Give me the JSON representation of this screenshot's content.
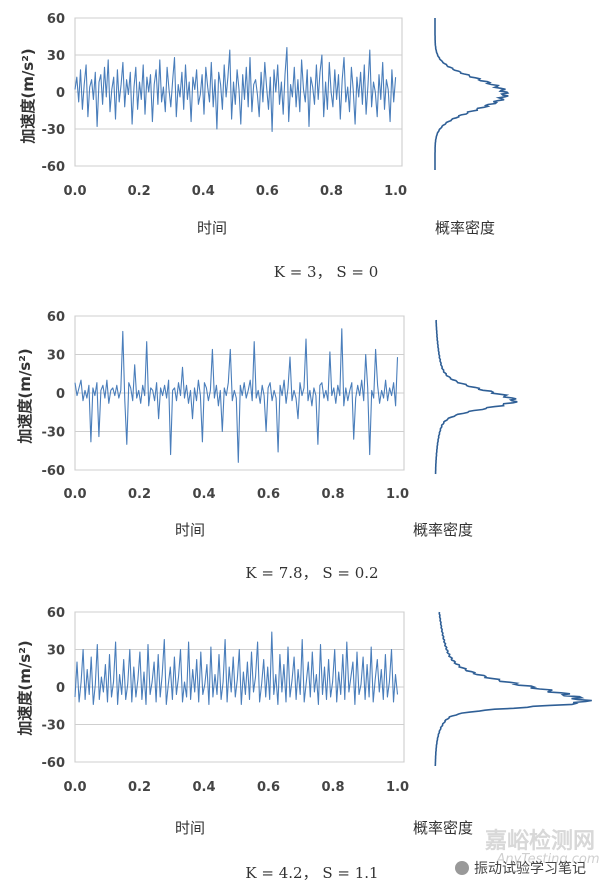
{
  "chart_data": [
    {
      "type": "line",
      "ylabel": "加速度(m/s²)",
      "xlabel": "时间",
      "pdf_label": "概率密度",
      "caption": "K = 3， S = 0",
      "xticks": [
        "0.0",
        "0.2",
        "0.4",
        "0.6",
        "0.8",
        "1.0"
      ],
      "yticks": [
        "60",
        "30",
        "0",
        "-30",
        "-60"
      ],
      "xlim": [
        0,
        1.02
      ],
      "ylim": [
        -60,
        60
      ],
      "grid": true,
      "kurtosis": 3,
      "skewness": 0,
      "series": [
        {
          "values": [
            2,
            12,
            -8,
            18,
            -14,
            6,
            22,
            -20,
            4,
            10,
            -6,
            16,
            -28,
            8,
            14,
            -10,
            20,
            -4,
            26,
            -16,
            2,
            12,
            -22,
            18,
            -8,
            6,
            24,
            -12,
            10,
            -2,
            16,
            -26,
            4,
            20,
            -14,
            8,
            -6,
            22,
            -18,
            12,
            0,
            14,
            -24,
            6,
            18,
            -10,
            26,
            -8,
            4,
            -16,
            20,
            2,
            -12,
            10,
            28,
            -20,
            6,
            -4,
            16,
            -14,
            22,
            -6,
            8,
            -24,
            12,
            2,
            18,
            -10,
            -2,
            14,
            -18,
            20,
            4,
            -8,
            24,
            -12,
            10,
            -30,
            16,
            6,
            -14,
            22,
            -4,
            12,
            34,
            -22,
            8,
            -10,
            18,
            2,
            -26,
            14,
            -6,
            20,
            -12,
            28,
            -16,
            6,
            10,
            -2,
            -20,
            16,
            -8,
            24,
            4,
            -14,
            12,
            -32,
            18,
            0,
            22,
            -10,
            8,
            -18,
            14,
            36,
            -24,
            6,
            -4,
            20,
            -12,
            10,
            -16,
            26,
            2,
            -8,
            18,
            -28,
            12,
            4,
            -10,
            22,
            -6,
            16,
            30,
            -20,
            8,
            -14,
            24,
            0,
            -12,
            18,
            -6,
            14,
            -22,
            10,
            28,
            -8,
            4,
            -16,
            20,
            2,
            -26,
            12,
            -4,
            16,
            -10,
            22,
            -18,
            6,
            34,
            -12,
            8,
            0,
            -20,
            14,
            -6,
            24,
            -14,
            10,
            2,
            -24,
            18,
            -8,
            12
          ]
        }
      ],
      "pdf": {
        "peak_y": 0,
        "spread": 12
      }
    },
    {
      "type": "line",
      "ylabel": "加速度(m/s²)",
      "xlabel": "时间",
      "pdf_label": "概率密度",
      "caption": "K = 7.8， S = 0.2",
      "xticks": [
        "0.0",
        "0.2",
        "0.4",
        "0.6",
        "0.8",
        "1.0"
      ],
      "yticks": [
        "60",
        "30",
        "0",
        "-30",
        "-60"
      ],
      "xlim": [
        0,
        1.02
      ],
      "ylim": [
        -60,
        60
      ],
      "grid": true,
      "kurtosis": 7.8,
      "skewness": 0.2,
      "series": [
        {
          "values": [
            8,
            -2,
            4,
            10,
            -6,
            2,
            -4,
            6,
            -38,
            4,
            -2,
            8,
            -34,
            2,
            6,
            -4,
            10,
            -8,
            2,
            4,
            -2,
            6,
            -4,
            2,
            48,
            -6,
            -40,
            8,
            4,
            -6,
            22,
            -4,
            2,
            -8,
            6,
            -2,
            40,
            -10,
            4,
            2,
            -6,
            8,
            -20,
            4,
            -2,
            6,
            -4,
            10,
            -48,
            2,
            4,
            -6,
            8,
            -2,
            20,
            -4,
            6,
            -8,
            2,
            -20,
            4,
            -6,
            10,
            -2,
            -38,
            8,
            4,
            -6,
            2,
            34,
            -4,
            6,
            -10,
            2,
            -30,
            4,
            -2,
            8,
            34,
            -6,
            2,
            -4,
            -54,
            6,
            -2,
            8,
            -4,
            2,
            10,
            -6,
            40,
            -4,
            2,
            -8,
            6,
            -2,
            -30,
            4,
            8,
            -6,
            2,
            -4,
            -46,
            6,
            -2,
            10,
            -8,
            4,
            28,
            -6,
            2,
            -4,
            -20,
            8,
            -2,
            4,
            42,
            -6,
            2,
            -10,
            4,
            -2,
            -40,
            6,
            8,
            -4,
            2,
            -6,
            32,
            -2,
            4,
            -8,
            6,
            -2,
            50,
            -10,
            4,
            -6,
            2,
            8,
            -36,
            -4,
            6,
            -2,
            10,
            -6,
            30,
            4,
            -48,
            2,
            -4,
            34,
            6,
            -8,
            2,
            -4,
            10,
            -6,
            4,
            -2,
            8,
            -10,
            28
          ]
        }
      ],
      "pdf": {
        "peak_y": -3,
        "spread": 6
      }
    },
    {
      "type": "line",
      "ylabel": "加速度(m/s²)",
      "xlabel": "时间",
      "pdf_label": "概率密度",
      "caption": "K = 4.2， S = 1.1",
      "xticks": [
        "0.0",
        "0.2",
        "0.4",
        "0.6",
        "0.8",
        "1.0"
      ],
      "yticks": [
        "60",
        "30",
        "0",
        "-30",
        "-60"
      ],
      "xlim": [
        0,
        1.02
      ],
      "ylim": [
        -60,
        60
      ],
      "grid": true,
      "kurtosis": 4.2,
      "skewness": 1.1,
      "series": [
        {
          "values": [
            -8,
            20,
            -12,
            4,
            30,
            -10,
            14,
            -6,
            24,
            -14,
            2,
            34,
            -10,
            8,
            -4,
            18,
            -12,
            26,
            -8,
            4,
            36,
            -14,
            10,
            -6,
            22,
            -10,
            2,
            30,
            -12,
            16,
            -8,
            6,
            28,
            -10,
            12,
            -14,
            34,
            -6,
            4,
            20,
            -12,
            26,
            -8,
            10,
            38,
            -14,
            2,
            16,
            -10,
            24,
            -6,
            8,
            30,
            -12,
            4,
            -8,
            36,
            -10,
            14,
            -4,
            22,
            -12,
            28,
            -6,
            2,
            18,
            -14,
            32,
            -8,
            10,
            -6,
            26,
            -10,
            4,
            38,
            -12,
            16,
            -4,
            24,
            -8,
            6,
            30,
            -14,
            12,
            -6,
            20,
            -10,
            28,
            -4,
            8,
            36,
            -12,
            2,
            22,
            -8,
            16,
            -10,
            44,
            -6,
            10,
            -14,
            26,
            -4,
            18,
            -12,
            32,
            -8,
            6,
            24,
            -10,
            14,
            -6,
            38,
            -12,
            4,
            20,
            -8,
            28,
            -4,
            10,
            -14,
            34,
            -6,
            16,
            -10,
            22,
            -8,
            4,
            30,
            -12,
            12,
            -6,
            26,
            -10,
            36,
            -4,
            8,
            20,
            -14,
            28,
            -6,
            2,
            24,
            -10,
            18,
            -8,
            32,
            -12,
            6,
            22,
            -4,
            14,
            -10,
            26,
            -8,
            4,
            30,
            -12,
            10,
            -6
          ]
        }
      ],
      "pdf": {
        "peak_y": -10,
        "spread": 4
      }
    }
  ],
  "watermark": {
    "line1": "嘉峪检测网",
    "line2": "AnyTesting.com",
    "badge": "振动试验学习笔记"
  }
}
